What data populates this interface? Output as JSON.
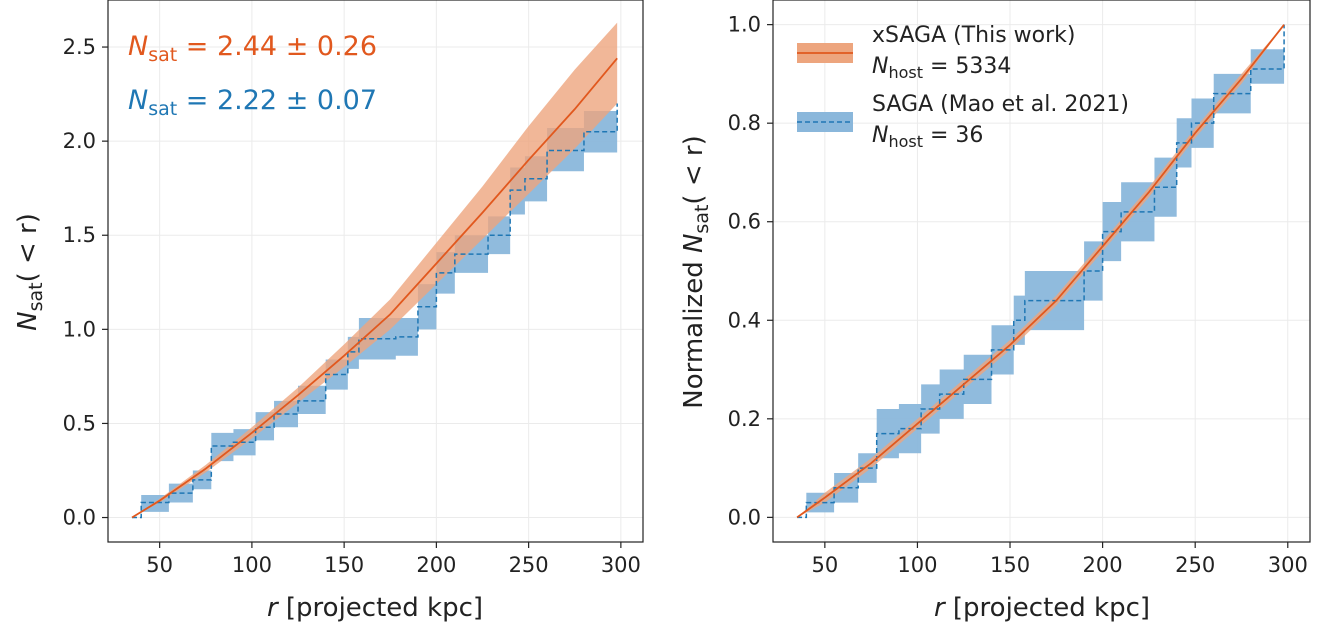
{
  "chart_data": [
    {
      "type": "line",
      "xlabel_math": "r",
      "xlabel_text": " [projected kpc]",
      "ylabel_math": "N",
      "ylabel_sub": "sat",
      "ylabel_rest": "( < r)",
      "xlim": [
        22,
        312
      ],
      "ylim": [
        -0.13,
        2.75
      ],
      "xticks": [
        "50",
        "100",
        "150",
        "200",
        "250",
        "300"
      ],
      "yticks": [
        "0.0",
        "0.5",
        "1.0",
        "1.5",
        "2.0",
        "2.5"
      ],
      "grid": true,
      "annotations": [
        {
          "math": "N",
          "sub": "sat",
          "text": " = 2.44 ± 0.26",
          "color": "#E1581E"
        },
        {
          "math": "N",
          "sub": "sat",
          "text": " = 2.22 ± 0.07",
          "color": "#1F77B4"
        }
      ],
      "series": [
        {
          "name": "xSAGA (This work)",
          "style": "solid",
          "color": "#E1581E",
          "band_color": "#EDA57E",
          "x": [
            35,
            50,
            75,
            100,
            125,
            150,
            175,
            200,
            225,
            250,
            275,
            298
          ],
          "y": [
            0.0,
            0.09,
            0.26,
            0.45,
            0.65,
            0.86,
            1.08,
            1.35,
            1.62,
            1.9,
            2.17,
            2.44
          ],
          "lo": [
            0.0,
            0.08,
            0.24,
            0.42,
            0.61,
            0.8,
            1.0,
            1.24,
            1.48,
            1.72,
            1.96,
            2.2
          ],
          "hi": [
            0.0,
            0.1,
            0.28,
            0.48,
            0.69,
            0.92,
            1.16,
            1.46,
            1.76,
            2.08,
            2.38,
            2.63
          ]
        },
        {
          "name": "SAGA (Mao et al. 2021)",
          "style": "dashed",
          "color": "#1F77B4",
          "band_color": "#8AB7DB",
          "x": [
            35,
            40,
            55,
            68,
            78,
            90,
            102,
            112,
            125,
            140,
            152,
            158,
            178,
            190,
            200,
            210,
            228,
            240,
            248,
            260,
            280,
            298
          ],
          "y": [
            0.0,
            0.08,
            0.13,
            0.2,
            0.38,
            0.4,
            0.48,
            0.55,
            0.62,
            0.76,
            0.88,
            0.95,
            0.96,
            1.12,
            1.3,
            1.4,
            1.5,
            1.74,
            1.8,
            1.95,
            2.05,
            2.2
          ],
          "lo": [
            0.0,
            0.03,
            0.08,
            0.15,
            0.3,
            0.33,
            0.41,
            0.48,
            0.55,
            0.68,
            0.79,
            0.84,
            0.86,
            1.0,
            1.19,
            1.3,
            1.4,
            1.61,
            1.68,
            1.84,
            1.94,
            2.1
          ],
          "hi": [
            0.0,
            0.12,
            0.18,
            0.25,
            0.45,
            0.47,
            0.56,
            0.62,
            0.7,
            0.84,
            0.96,
            1.06,
            1.06,
            1.24,
            1.41,
            1.5,
            1.6,
            1.86,
            1.92,
            2.07,
            2.16,
            2.3
          ]
        }
      ]
    },
    {
      "type": "line",
      "xlabel_math": "r",
      "xlabel_text": " [projected kpc]",
      "ylabel_pre": "Normalized ",
      "ylabel_math": "N",
      "ylabel_sub": "sat",
      "ylabel_rest": "( < r)",
      "xlim": [
        22,
        312
      ],
      "ylim": [
        -0.05,
        1.05
      ],
      "xticks": [
        "50",
        "100",
        "150",
        "200",
        "250",
        "300"
      ],
      "yticks": [
        "0.0",
        "0.2",
        "0.4",
        "0.6",
        "0.8",
        "1.0"
      ],
      "grid": true,
      "legend_position": "top-left",
      "series": [
        {
          "name": "xSAGA (This work)",
          "legend_sub_math": "N",
          "legend_sub_sub": "host",
          "legend_sub_text": " = 5334",
          "style": "solid",
          "color": "#E1581E",
          "band_color": "#EDA57E",
          "x": [
            35,
            50,
            75,
            100,
            125,
            150,
            175,
            200,
            225,
            250,
            275,
            298
          ],
          "y": [
            0.0,
            0.04,
            0.11,
            0.19,
            0.27,
            0.35,
            0.44,
            0.55,
            0.66,
            0.78,
            0.89,
            1.0
          ],
          "lo": [
            0.0,
            0.03,
            0.1,
            0.18,
            0.26,
            0.34,
            0.43,
            0.54,
            0.65,
            0.77,
            0.88,
            1.0
          ],
          "hi": [
            0.0,
            0.05,
            0.12,
            0.2,
            0.28,
            0.36,
            0.45,
            0.56,
            0.67,
            0.79,
            0.9,
            1.0
          ]
        },
        {
          "name": "SAGA (Mao et al. 2021)",
          "legend_sub_math": "N",
          "legend_sub_sub": "host",
          "legend_sub_text": " = 36",
          "style": "dashed",
          "color": "#1F77B4",
          "band_color": "#8AB7DB",
          "x": [
            35,
            40,
            55,
            68,
            78,
            90,
            102,
            112,
            125,
            140,
            152,
            158,
            178,
            190,
            200,
            210,
            228,
            240,
            248,
            260,
            280,
            298
          ],
          "y": [
            0.0,
            0.03,
            0.06,
            0.1,
            0.17,
            0.18,
            0.22,
            0.25,
            0.28,
            0.34,
            0.4,
            0.44,
            0.44,
            0.5,
            0.58,
            0.62,
            0.67,
            0.76,
            0.8,
            0.86,
            0.91,
            1.0
          ],
          "lo": [
            0.0,
            0.01,
            0.03,
            0.07,
            0.12,
            0.13,
            0.17,
            0.2,
            0.23,
            0.29,
            0.35,
            0.38,
            0.38,
            0.44,
            0.52,
            0.56,
            0.61,
            0.71,
            0.75,
            0.82,
            0.88,
            1.0
          ],
          "hi": [
            0.0,
            0.05,
            0.09,
            0.13,
            0.22,
            0.23,
            0.27,
            0.3,
            0.33,
            0.39,
            0.45,
            0.5,
            0.5,
            0.56,
            0.64,
            0.68,
            0.73,
            0.81,
            0.85,
            0.9,
            0.95,
            1.0
          ]
        }
      ]
    }
  ]
}
